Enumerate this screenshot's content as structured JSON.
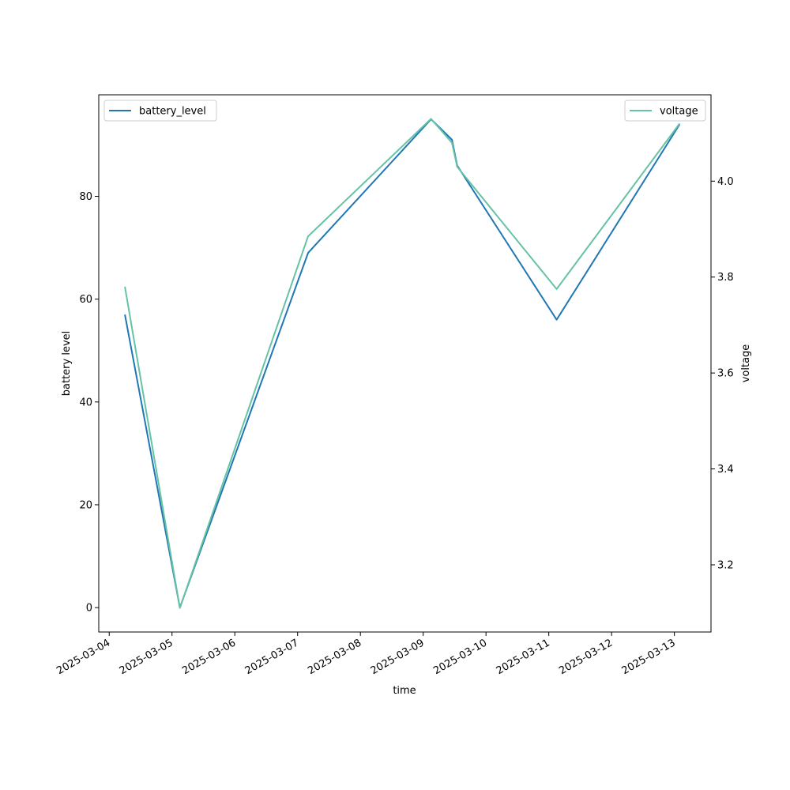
{
  "chart_data": {
    "type": "line",
    "xlabel": "time",
    "ylabel": "battery level",
    "y2label": "voltage",
    "x_ticks": [
      "2025-03-04",
      "2025-03-05",
      "2025-03-06",
      "2025-03-07",
      "2025-03-08",
      "2025-03-09",
      "2025-03-10",
      "2025-03-11",
      "2025-03-12",
      "2025-03-13"
    ],
    "y_ticks": [
      0,
      20,
      40,
      60,
      80
    ],
    "y2_ticks": [
      "3.2",
      "3.4",
      "3.6",
      "3.8",
      "4.0"
    ],
    "xlim": [
      "2025-03-03T20:00",
      "2025-03-13T14:00"
    ],
    "ylim": [
      -4.75,
      99.75
    ],
    "y2lim": [
      3.06,
      4.18
    ],
    "grid": false,
    "series": [
      {
        "name": "battery_level",
        "axis": "left",
        "color": "#1f77b4",
        "legend_position": "upper left",
        "points": [
          {
            "x": "2025-03-04T06:00",
            "y": 57
          },
          {
            "x": "2025-03-05T03:00",
            "y": 0
          },
          {
            "x": "2025-03-07T04:00",
            "y": 69
          },
          {
            "x": "2025-03-09T03:00",
            "y": 95
          },
          {
            "x": "2025-03-09T11:00",
            "y": 91
          },
          {
            "x": "2025-03-09T13:00",
            "y": 86
          },
          {
            "x": "2025-03-11T03:00",
            "y": 56
          },
          {
            "x": "2025-03-13T02:00",
            "y": 94
          }
        ]
      },
      {
        "name": "voltage",
        "axis": "right",
        "color": "#66c2a5",
        "legend_position": "upper right",
        "points": [
          {
            "x": "2025-03-04T06:00",
            "y": 3.78
          },
          {
            "x": "2025-03-05T03:00",
            "y": 3.11
          },
          {
            "x": "2025-03-07T04:00",
            "y": 3.885
          },
          {
            "x": "2025-03-09T03:00",
            "y": 4.13
          },
          {
            "x": "2025-03-09T11:00",
            "y": 4.08
          },
          {
            "x": "2025-03-09T13:00",
            "y": 4.03
          },
          {
            "x": "2025-03-11T03:00",
            "y": 3.775
          },
          {
            "x": "2025-03-13T02:00",
            "y": 4.12
          }
        ]
      }
    ]
  }
}
